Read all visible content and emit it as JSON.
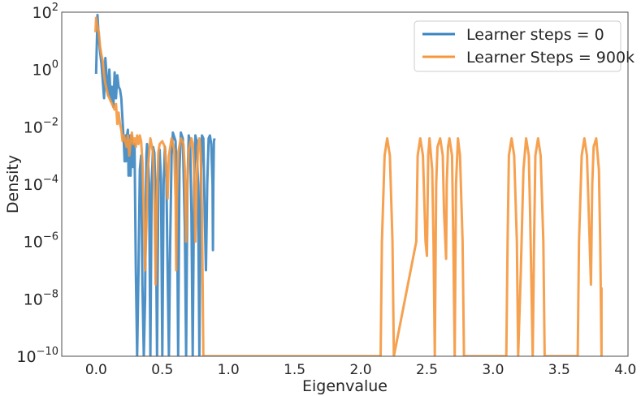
{
  "chart_data": {
    "type": "line",
    "title": "",
    "xlabel": "Eigenvalue",
    "ylabel": "Density",
    "x_scale": "linear",
    "y_scale": "log",
    "xlim": [
      -0.26,
      4.02
    ],
    "ylim": [
      1e-10,
      100
    ],
    "x_ticks": [
      {
        "value": 0.0,
        "label": "0.0"
      },
      {
        "value": 0.5,
        "label": "0.5"
      },
      {
        "value": 1.0,
        "label": "1.0"
      },
      {
        "value": 1.5,
        "label": "1.5"
      },
      {
        "value": 2.0,
        "label": "2.0"
      },
      {
        "value": 2.5,
        "label": "2.5"
      },
      {
        "value": 3.0,
        "label": "3.0"
      },
      {
        "value": 3.5,
        "label": "3.5"
      },
      {
        "value": 4.0,
        "label": "4.0"
      }
    ],
    "y_ticks": [
      {
        "exp": -10,
        "base": "10",
        "sup": "−10"
      },
      {
        "exp": -8,
        "base": "10",
        "sup": "−8"
      },
      {
        "exp": -6,
        "base": "10",
        "sup": "−6"
      },
      {
        "exp": -4,
        "base": "10",
        "sup": "−4"
      },
      {
        "exp": -2,
        "base": "10",
        "sup": "−2"
      },
      {
        "exp": 0,
        "base": "10",
        "sup": "0"
      },
      {
        "exp": 2,
        "base": "10",
        "sup": "2"
      }
    ],
    "grid": false,
    "legend_position": "top-right",
    "series": [
      {
        "name": "Learner steps = 0",
        "color": "#3b85c0",
        "log10_points": [
          [
            0.0,
            -0.15
          ],
          [
            0.01,
            1.9
          ],
          [
            0.02,
            1.1
          ],
          [
            0.03,
            0.6
          ],
          [
            0.04,
            0.2
          ],
          [
            0.05,
            -0.4
          ],
          [
            0.06,
            -1.0
          ],
          [
            0.07,
            0.4
          ],
          [
            0.08,
            -0.3
          ],
          [
            0.09,
            -0.9
          ],
          [
            0.1,
            0.0
          ],
          [
            0.11,
            -1.1
          ],
          [
            0.12,
            -0.6
          ],
          [
            0.13,
            -1.3
          ],
          [
            0.14,
            -0.1
          ],
          [
            0.15,
            -1.0
          ],
          [
            0.16,
            -0.2
          ],
          [
            0.17,
            -0.6
          ],
          [
            0.18,
            -0.7
          ],
          [
            0.19,
            -1.0
          ],
          [
            0.2,
            -1.8
          ],
          [
            0.21,
            -2.6
          ],
          [
            0.215,
            -3.2
          ],
          [
            0.22,
            -2.3
          ],
          [
            0.225,
            -3.2
          ],
          [
            0.23,
            -2.4
          ],
          [
            0.24,
            -2.1
          ],
          [
            0.245,
            -3.7
          ],
          [
            0.25,
            -2.3
          ],
          [
            0.26,
            -3.7
          ],
          [
            0.27,
            -2.3
          ],
          [
            0.28,
            -3.4
          ],
          [
            0.29,
            -2.6
          ],
          [
            0.3,
            -7.0
          ],
          [
            0.31,
            -10.0
          ],
          [
            0.32,
            -7.0
          ],
          [
            0.33,
            -3.5
          ],
          [
            0.34,
            -3.0
          ],
          [
            0.35,
            -7.5
          ],
          [
            0.36,
            -10.0
          ],
          [
            0.37,
            -8.0
          ],
          [
            0.375,
            -5.0
          ],
          [
            0.38,
            -3.0
          ],
          [
            0.385,
            -2.6
          ],
          [
            0.39,
            -3.0
          ],
          [
            0.4,
            -4.0
          ],
          [
            0.41,
            -10.0
          ],
          [
            0.42,
            -4.0
          ],
          [
            0.43,
            -2.7
          ],
          [
            0.44,
            -2.9
          ],
          [
            0.45,
            -4.5
          ],
          [
            0.46,
            -10.0
          ],
          [
            0.47,
            -4.0
          ],
          [
            0.48,
            -2.8
          ],
          [
            0.49,
            -3.8
          ],
          [
            0.5,
            -10.0
          ],
          [
            0.51,
            -4.0
          ],
          [
            0.52,
            -2.7
          ],
          [
            0.53,
            -3.5
          ],
          [
            0.54,
            -7.0
          ],
          [
            0.55,
            -10.0
          ],
          [
            0.56,
            -6.0
          ],
          [
            0.57,
            -3.0
          ],
          [
            0.58,
            -2.2
          ],
          [
            0.6,
            -2.5
          ],
          [
            0.61,
            -4.0
          ],
          [
            0.62,
            -10.0
          ],
          [
            0.63,
            -3.5
          ],
          [
            0.64,
            -2.2
          ],
          [
            0.655,
            -2.4
          ],
          [
            0.67,
            -5.5
          ],
          [
            0.68,
            -10.0
          ],
          [
            0.69,
            -4.0
          ],
          [
            0.7,
            -2.3
          ],
          [
            0.71,
            -2.5
          ],
          [
            0.72,
            -5.0
          ],
          [
            0.73,
            -10.0
          ],
          [
            0.74,
            -4.0
          ],
          [
            0.75,
            -2.3
          ],
          [
            0.76,
            -2.5
          ],
          [
            0.77,
            -4.0
          ],
          [
            0.78,
            -10.0
          ],
          [
            0.79,
            -4.0
          ],
          [
            0.8,
            -2.3
          ],
          [
            0.81,
            -2.4
          ],
          [
            0.82,
            -5.0
          ],
          [
            0.83,
            -7.0
          ],
          [
            0.84,
            -4.0
          ],
          [
            0.85,
            -2.4
          ],
          [
            0.86,
            -2.3
          ],
          [
            0.87,
            -2.6
          ],
          [
            0.88,
            -4.0
          ],
          [
            0.883,
            -6.3
          ],
          [
            0.886,
            -4.0
          ],
          [
            0.89,
            -2.5
          ],
          [
            0.895,
            -2.4
          ]
        ]
      },
      {
        "name": "Learner Steps = 900k",
        "color": "#f5973d",
        "log10_points": [
          [
            -0.005,
            1.3
          ],
          [
            0.0,
            1.8
          ],
          [
            0.01,
            1.5
          ],
          [
            0.02,
            1.3
          ],
          [
            0.03,
            0.8
          ],
          [
            0.04,
            0.5
          ],
          [
            0.05,
            0.3
          ],
          [
            0.06,
            -0.2
          ],
          [
            0.07,
            -0.5
          ],
          [
            0.08,
            -0.7
          ],
          [
            0.09,
            -0.9
          ],
          [
            0.1,
            -1.0
          ],
          [
            0.11,
            -1.1
          ],
          [
            0.12,
            -1.2
          ],
          [
            0.13,
            -1.3
          ],
          [
            0.14,
            -1.4
          ],
          [
            0.15,
            -1.2
          ],
          [
            0.16,
            -1.9
          ],
          [
            0.17,
            -1.5
          ],
          [
            0.18,
            -1.9
          ],
          [
            0.19,
            -2.1
          ],
          [
            0.2,
            -2.5
          ],
          [
            0.21,
            -2.3
          ],
          [
            0.22,
            -2.5
          ],
          [
            0.23,
            -2.7
          ],
          [
            0.24,
            -2.3
          ],
          [
            0.25,
            -3.0
          ],
          [
            0.26,
            -2.5
          ],
          [
            0.27,
            -2.2
          ],
          [
            0.28,
            -2.6
          ],
          [
            0.29,
            -2.4
          ],
          [
            0.3,
            -2.7
          ],
          [
            0.31,
            -2.3
          ],
          [
            0.32,
            -2.6
          ],
          [
            0.33,
            -2.3
          ],
          [
            0.34,
            -2.5
          ],
          [
            0.35,
            -3.2
          ],
          [
            0.36,
            -5.0
          ],
          [
            0.37,
            -7.0
          ],
          [
            0.38,
            -5.5
          ],
          [
            0.39,
            -3.5
          ],
          [
            0.41,
            -2.4
          ],
          [
            0.43,
            -2.9
          ],
          [
            0.44,
            -4.5
          ],
          [
            0.45,
            -7.5
          ],
          [
            0.46,
            -4.5
          ],
          [
            0.47,
            -2.9
          ],
          [
            0.48,
            -2.6
          ],
          [
            0.5,
            -2.5
          ],
          [
            0.52,
            -2.7
          ],
          [
            0.53,
            -3.5
          ],
          [
            0.54,
            -4.5
          ],
          [
            0.55,
            -3.0
          ],
          [
            0.57,
            -2.4
          ],
          [
            0.59,
            -2.8
          ],
          [
            0.6,
            -4.5
          ],
          [
            0.605,
            -7.0
          ],
          [
            0.61,
            -4.5
          ],
          [
            0.62,
            -2.9
          ],
          [
            0.64,
            -2.4
          ],
          [
            0.66,
            -2.6
          ],
          [
            0.67,
            -3.5
          ],
          [
            0.68,
            -6.0
          ],
          [
            0.69,
            -4.0
          ],
          [
            0.7,
            -2.8
          ],
          [
            0.72,
            -2.4
          ],
          [
            0.73,
            -2.6
          ],
          [
            0.74,
            -3.5
          ],
          [
            0.75,
            -6.0
          ],
          [
            0.76,
            -4.0
          ],
          [
            0.77,
            -2.7
          ],
          [
            0.78,
            -2.4
          ],
          [
            0.79,
            -3.0
          ],
          [
            0.8,
            -5.0
          ],
          [
            0.81,
            -10.0
          ],
          [
            0.815,
            -10.0
          ],
          [
            2.15,
            -10.0
          ],
          [
            2.16,
            -6.0
          ],
          [
            2.18,
            -3.0
          ],
          [
            2.2,
            -2.4
          ],
          [
            2.22,
            -3.0
          ],
          [
            2.24,
            -6.0
          ],
          [
            2.25,
            -10.0
          ],
          [
            2.42,
            -6.0
          ],
          [
            2.43,
            -3.0
          ],
          [
            2.45,
            -2.4
          ],
          [
            2.47,
            -3.0
          ],
          [
            2.49,
            -6.0
          ],
          [
            2.5,
            -6.5
          ],
          [
            2.51,
            -3.0
          ],
          [
            2.52,
            -2.4
          ],
          [
            2.54,
            -3.5
          ],
          [
            2.55,
            -6.0
          ],
          [
            2.56,
            -10.0
          ],
          [
            2.57,
            -4.0
          ],
          [
            2.58,
            -2.7
          ],
          [
            2.6,
            -2.4
          ],
          [
            2.62,
            -3.0
          ],
          [
            2.63,
            -5.0
          ],
          [
            2.645,
            -6.6
          ],
          [
            2.65,
            -4.0
          ],
          [
            2.66,
            -2.7
          ],
          [
            2.67,
            -2.4
          ],
          [
            2.69,
            -3.0
          ],
          [
            2.7,
            -6.0
          ],
          [
            2.71,
            -10.0
          ],
          [
            2.72,
            -4.0
          ],
          [
            2.735,
            -2.4
          ],
          [
            2.75,
            -3.0
          ],
          [
            2.77,
            -6.0
          ],
          [
            2.78,
            -10.0
          ],
          [
            3.1,
            -10.0
          ],
          [
            3.11,
            -6.0
          ],
          [
            3.12,
            -3.0
          ],
          [
            3.14,
            -2.4
          ],
          [
            3.16,
            -3.0
          ],
          [
            3.18,
            -6.0
          ],
          [
            3.19,
            -10.0
          ],
          [
            3.21,
            -7.0
          ],
          [
            3.23,
            -3.5
          ],
          [
            3.25,
            -2.4
          ],
          [
            3.27,
            -3.0
          ],
          [
            3.28,
            -5.0
          ],
          [
            3.3,
            -10.0
          ],
          [
            3.31,
            -6.0
          ],
          [
            3.32,
            -3.0
          ],
          [
            3.34,
            -2.4
          ],
          [
            3.36,
            -3.0
          ],
          [
            3.38,
            -6.0
          ],
          [
            3.39,
            -10.0
          ],
          [
            3.64,
            -10.0
          ],
          [
            3.65,
            -6.0
          ],
          [
            3.67,
            -3.0
          ],
          [
            3.69,
            -2.4
          ],
          [
            3.71,
            -3.0
          ],
          [
            3.73,
            -6.0
          ],
          [
            3.74,
            -7.5
          ],
          [
            3.75,
            -4.0
          ],
          [
            3.76,
            -2.7
          ],
          [
            3.78,
            -2.4
          ],
          [
            3.8,
            -3.5
          ],
          [
            3.81,
            -6.0
          ],
          [
            3.82,
            -10.0
          ],
          [
            3.82,
            -7.6
          ]
        ]
      }
    ]
  }
}
